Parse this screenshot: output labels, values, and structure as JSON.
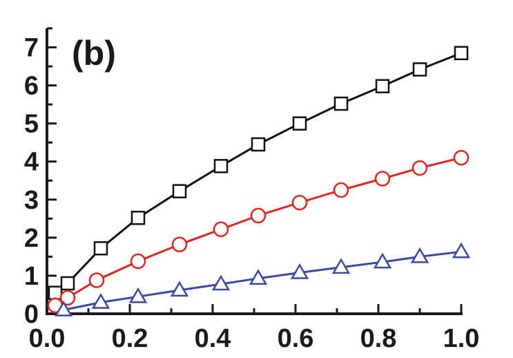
{
  "chart_data": {
    "type": "line",
    "panel_label": "(b)",
    "xlim": [
      0.0,
      1.0
    ],
    "ylim": [
      0,
      7.5
    ],
    "x_ticks": [
      0.0,
      0.2,
      0.4,
      0.6,
      0.8,
      1.0
    ],
    "x_tick_labels": [
      "0.0",
      "0.2",
      "0.4",
      "0.6",
      "0.8",
      "1.0"
    ],
    "y_ticks": [
      0,
      1,
      2,
      3,
      4,
      5,
      6,
      7
    ],
    "y_tick_labels": [
      "0",
      "1",
      "2",
      "3",
      "4",
      "5",
      "6",
      "7"
    ],
    "grid": false,
    "legend": "none",
    "series": [
      {
        "marker": "square",
        "color": "#111111",
        "x": [
          0.02,
          0.05,
          0.13,
          0.22,
          0.32,
          0.42,
          0.51,
          0.61,
          0.71,
          0.81,
          0.9,
          1.0
        ],
        "y": [
          0.55,
          0.8,
          1.72,
          2.52,
          3.22,
          3.88,
          4.45,
          5.0,
          5.52,
          5.98,
          6.42,
          6.85
        ]
      },
      {
        "marker": "circle",
        "color": "#e8221c",
        "x": [
          0.02,
          0.05,
          0.12,
          0.22,
          0.32,
          0.42,
          0.51,
          0.61,
          0.71,
          0.81,
          0.9,
          1.0
        ],
        "y": [
          0.22,
          0.42,
          0.88,
          1.38,
          1.82,
          2.22,
          2.58,
          2.92,
          3.25,
          3.55,
          3.83,
          4.1
        ]
      },
      {
        "marker": "triangle",
        "color": "#3949a8",
        "x": [
          0.04,
          0.13,
          0.22,
          0.32,
          0.42,
          0.51,
          0.61,
          0.71,
          0.81,
          0.9,
          1.0
        ],
        "y": [
          0.1,
          0.3,
          0.45,
          0.62,
          0.78,
          0.93,
          1.08,
          1.22,
          1.36,
          1.5,
          1.63
        ]
      }
    ]
  }
}
